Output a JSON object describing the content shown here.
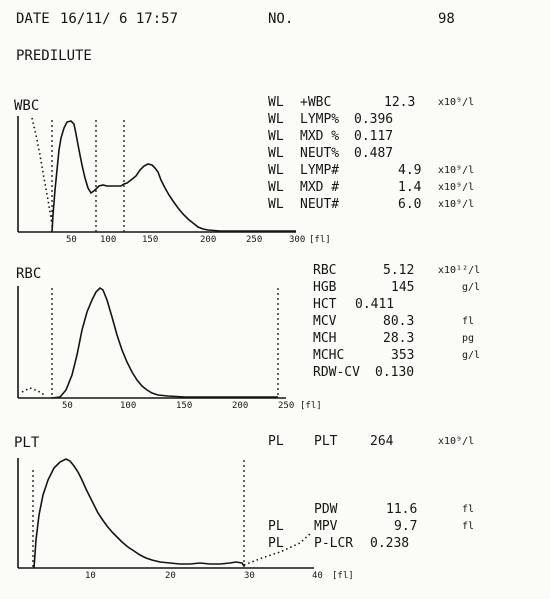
{
  "header": {
    "date_label": "DATE",
    "date_value": "16/11/ 6 17:57",
    "no_label": "NO.",
    "no_value": "98",
    "mode": "PREDILUTE"
  },
  "wbc": {
    "title": "WBC",
    "axis_ticks": [
      "50",
      "100",
      "150",
      "200",
      "250",
      "300"
    ],
    "axis_unit": "[fl]",
    "results": [
      {
        "flag": "WL",
        "name": "+WBC",
        "value": "12.3",
        "unit": "x10⁹/l"
      },
      {
        "flag": "WL",
        "name": "LYMP%",
        "value": "0.396",
        "unit": ""
      },
      {
        "flag": "WL",
        "name": "MXD %",
        "value": "0.117",
        "unit": ""
      },
      {
        "flag": "WL",
        "name": "NEUT%",
        "value": "0.487",
        "unit": ""
      },
      {
        "flag": "WL",
        "name": "LYMP#",
        "value": "4.9",
        "unit": "x10⁹/l"
      },
      {
        "flag": "WL",
        "name": "MXD #",
        "value": "1.4",
        "unit": "x10⁹/l"
      },
      {
        "flag": "WL",
        "name": "NEUT#",
        "value": "6.0",
        "unit": "x10⁹/l"
      }
    ]
  },
  "rbc": {
    "title": "RBC",
    "axis_ticks": [
      "50",
      "100",
      "150",
      "200",
      "250"
    ],
    "axis_unit": "[fl]",
    "results": [
      {
        "name": "RBC",
        "value": "5.12",
        "unit": "x10¹²/l"
      },
      {
        "name": "HGB",
        "value": "145",
        "unit": "g/l"
      },
      {
        "name": "HCT",
        "value": "0.411",
        "unit": ""
      },
      {
        "name": "MCV",
        "value": "80.3",
        "unit": "fl"
      },
      {
        "name": "MCH",
        "value": "28.3",
        "unit": "pg"
      },
      {
        "name": "MCHC",
        "value": "353",
        "unit": "g/l"
      },
      {
        "name": "RDW-CV",
        "value": "0.130",
        "unit": ""
      }
    ]
  },
  "plt": {
    "title": "PLT",
    "axis_ticks": [
      "10",
      "20",
      "30",
      "40"
    ],
    "axis_unit": "[fl]",
    "results": [
      {
        "flag": "PL",
        "name": "PLT",
        "value": "264",
        "unit": "x10⁹/l"
      },
      {
        "flag": "",
        "name": "PDW",
        "value": "11.6",
        "unit": "fl"
      },
      {
        "flag": "PL",
        "name": "MPV",
        "value": "9.7",
        "unit": "fl"
      },
      {
        "flag": "PL",
        "name": "P-LCR",
        "value": "0.238",
        "unit": ""
      }
    ]
  }
}
